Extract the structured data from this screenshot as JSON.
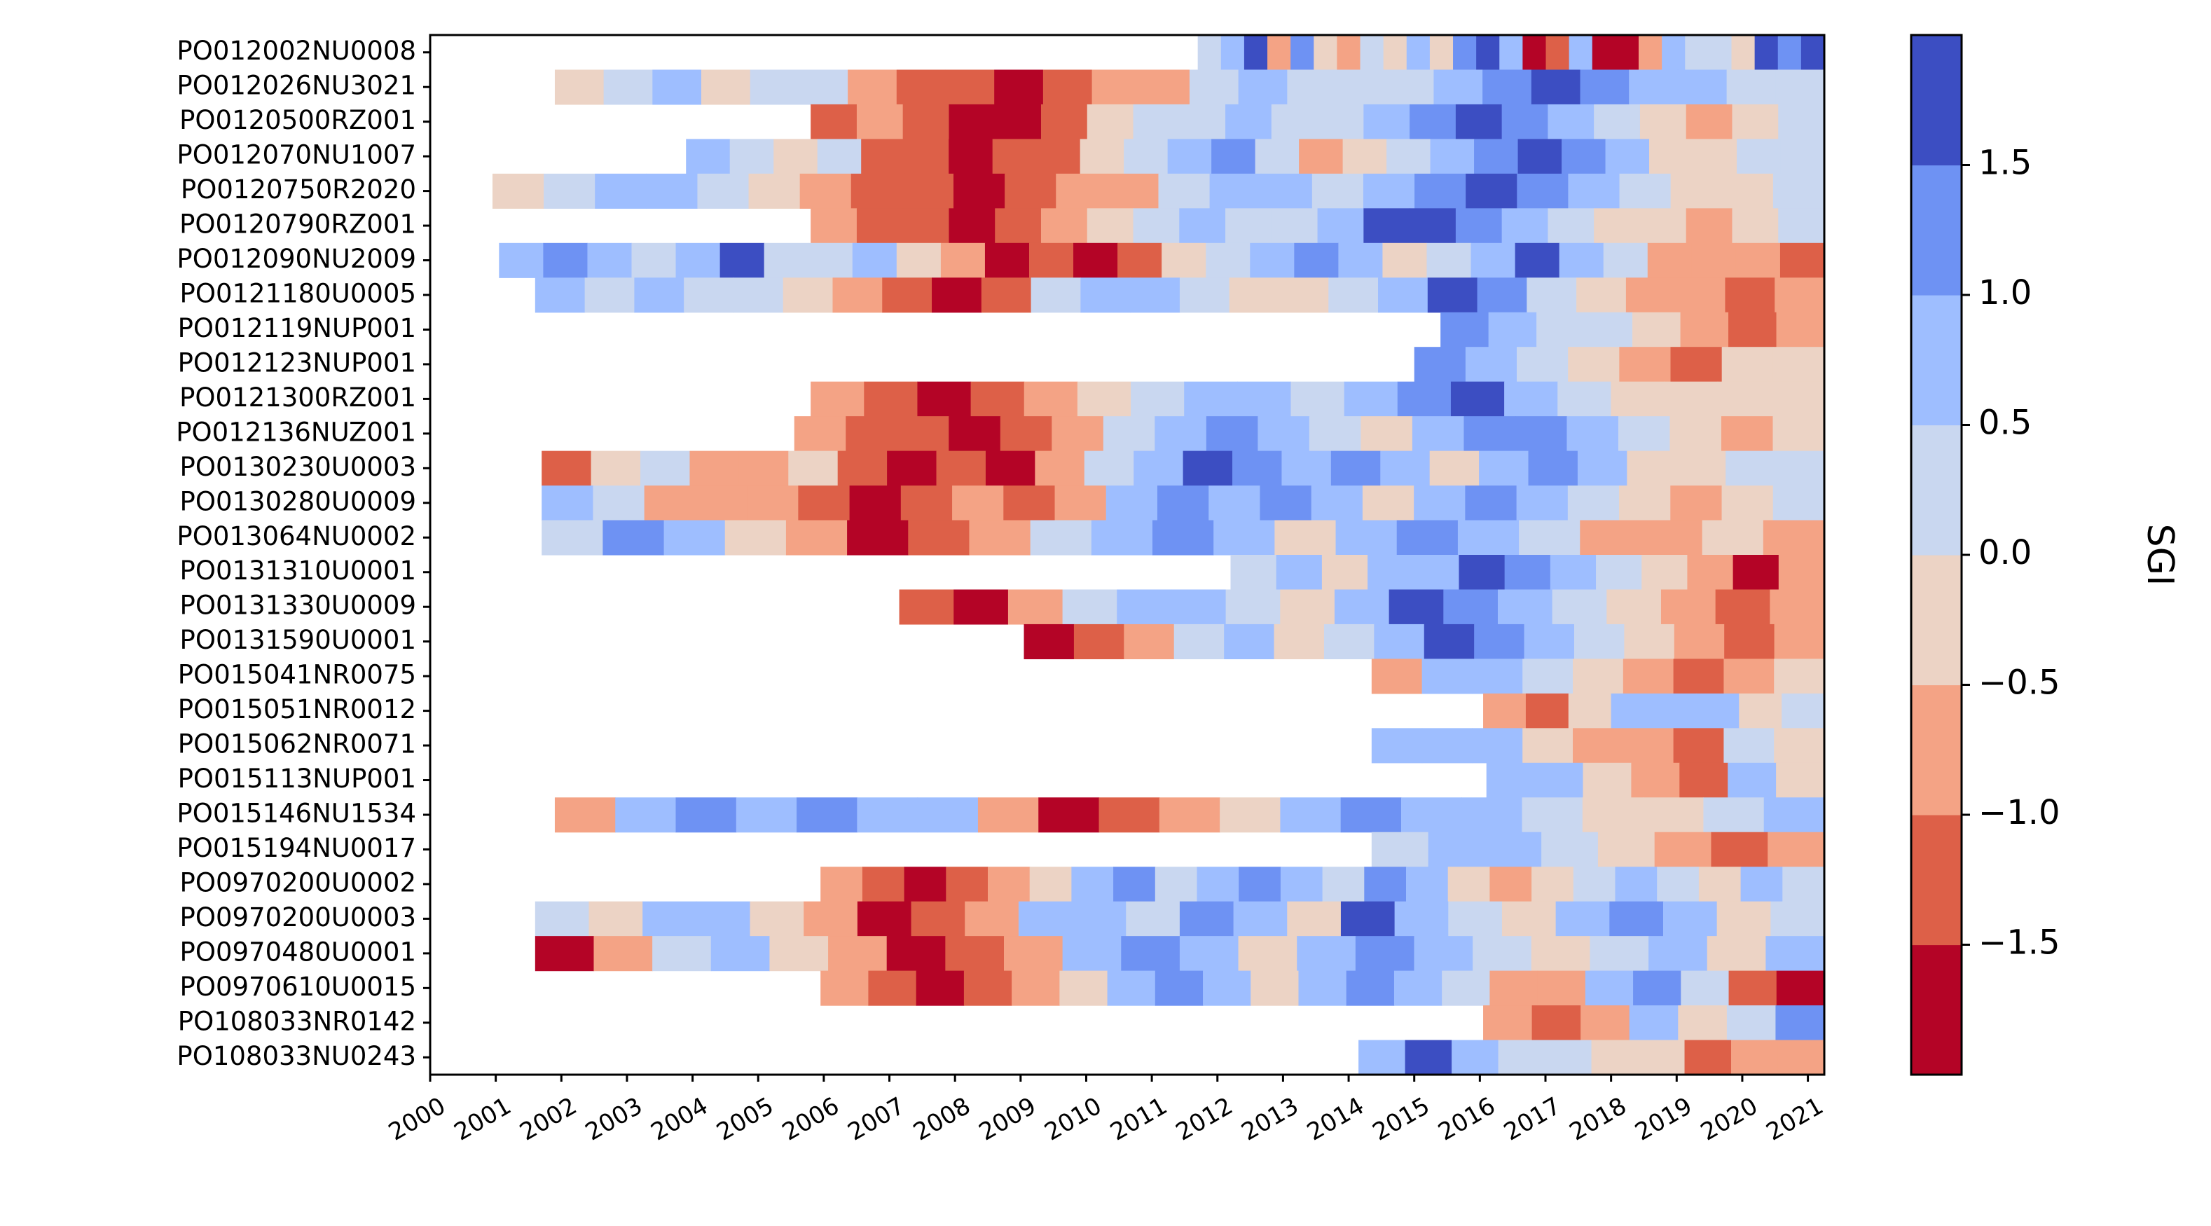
{
  "chart_data": {
    "type": "heatmap",
    "title": "",
    "xlabel": "",
    "ylabel": "",
    "xlim": [
      2000,
      2021.25
    ],
    "x_ticks": [
      "2000",
      "2001",
      "2002",
      "2003",
      "2004",
      "2005",
      "2006",
      "2007",
      "2008",
      "2009",
      "2010",
      "2011",
      "2012",
      "2013",
      "2014",
      "2015",
      "2016",
      "2017",
      "2018",
      "2019",
      "2020",
      "2021"
    ],
    "rows": [
      {
        "id": "PO012002NU0008",
        "start": 2011.7,
        "end": 2021.25,
        "values": [
          0.3,
          0.8,
          1.6,
          -0.6,
          1.0,
          -0.3,
          -0.8,
          0.2,
          -0.4,
          0.6,
          -0.2,
          1.1,
          1.5,
          0.5,
          -1.8,
          -1.2,
          0.8,
          -1.9,
          -1.7,
          -0.6,
          0.9,
          0.4,
          0.3,
          -0.4,
          1.7,
          1.4,
          1.7
        ]
      },
      {
        "id": "PO012026NU3021",
        "start": 2001.9,
        "end": 2021.25,
        "values": [
          -0.4,
          0.2,
          0.6,
          -0.3,
          0.1,
          0.4,
          -0.8,
          -1.2,
          -1.5,
          -1.8,
          -1.3,
          -0.8,
          -0.6,
          0.2,
          0.6,
          0.4,
          0.2,
          0.1,
          0.8,
          1.2,
          1.6,
          1.3,
          0.7,
          0.5,
          0.1,
          0.3
        ]
      },
      {
        "id": "PO0120500RZ001",
        "start": 2005.8,
        "end": 2021.25,
        "values": [
          -1.1,
          -0.7,
          -1.3,
          -1.8,
          -1.6,
          -1.1,
          -0.5,
          0.1,
          0.4,
          0.6,
          0.3,
          0.2,
          0.5,
          1.2,
          1.6,
          1.4,
          0.9,
          0.3,
          -0.3,
          -0.6,
          -0.4,
          0.2
        ]
      },
      {
        "id": "PO012070NU1007",
        "start": 2003.9,
        "end": 2021.25,
        "values": [
          0.6,
          0.2,
          -0.4,
          0.1,
          -1.2,
          -1.4,
          -1.8,
          -1.5,
          -1.1,
          -0.5,
          0.2,
          0.6,
          1.0,
          0.3,
          -0.6,
          -0.4,
          0.2,
          0.5,
          1.3,
          1.6,
          1.2,
          0.5,
          -0.3,
          -0.5,
          0.1,
          0.3
        ]
      },
      {
        "id": "PO0120750R2020",
        "start": 2000.95,
        "end": 2021.25,
        "values": [
          -0.5,
          0.3,
          0.6,
          0.8,
          0.4,
          -0.3,
          -0.6,
          -1.1,
          -1.3,
          -1.7,
          -1.4,
          -0.9,
          -0.6,
          0.2,
          0.6,
          0.8,
          0.3,
          0.6,
          1.4,
          1.6,
          1.2,
          0.7,
          0.2,
          -0.3,
          -0.5,
          0.1
        ]
      },
      {
        "id": "PO0120790RZ001",
        "start": 2005.8,
        "end": 2021.25,
        "values": [
          -0.9,
          -1.1,
          -1.4,
          -1.8,
          -1.5,
          -0.7,
          -0.3,
          0.4,
          0.6,
          0.3,
          0.1,
          0.6,
          1.5,
          1.7,
          1.3,
          0.8,
          0.4,
          -0.2,
          -0.5,
          -0.7,
          -0.3,
          0.2
        ]
      },
      {
        "id": "PO012090NU2009",
        "start": 2001.05,
        "end": 2021.25,
        "values": [
          0.9,
          1.4,
          0.5,
          0.2,
          0.8,
          1.6,
          0.4,
          0.2,
          0.7,
          -0.3,
          -0.8,
          -1.6,
          -1.1,
          -1.8,
          -1.3,
          -0.4,
          0.3,
          0.6,
          1.1,
          0.5,
          -0.2,
          0.4,
          0.9,
          1.6,
          0.7,
          0.2,
          -0.6,
          -1.0,
          -0.7,
          -1.2
        ]
      },
      {
        "id": "PO0121180U0005",
        "start": 2001.6,
        "end": 2021.25,
        "values": [
          0.6,
          0.3,
          0.9,
          0.2,
          0.3,
          -0.2,
          -0.6,
          -1.2,
          -1.7,
          -1.1,
          0.2,
          0.6,
          0.9,
          0.4,
          -0.2,
          -0.4,
          0.3,
          0.9,
          1.5,
          1.0,
          0.4,
          -0.3,
          -0.6,
          -0.9,
          -1.2,
          -0.8
        ]
      },
      {
        "id": "PO012119NUP001",
        "start": 2015.4,
        "end": 2021.25,
        "values": [
          1.0,
          0.7,
          0.4,
          0.1,
          -0.4,
          -0.7,
          -1.1,
          -0.6
        ]
      },
      {
        "id": "PO012123NUP001",
        "start": 2015.0,
        "end": 2021.25,
        "values": [
          1.1,
          0.8,
          0.3,
          -0.2,
          -0.6,
          -1.3,
          -0.5,
          -0.2
        ]
      },
      {
        "id": "PO0121300RZ001",
        "start": 2005.8,
        "end": 2021.25,
        "values": [
          -0.9,
          -1.2,
          -1.7,
          -1.3,
          -0.8,
          -0.5,
          0.3,
          0.6,
          0.8,
          0.3,
          0.6,
          1.3,
          1.6,
          0.9,
          0.4,
          -0.2,
          -0.5,
          -0.4,
          -0.1
        ]
      },
      {
        "id": "PO012136NUZ001",
        "start": 2005.55,
        "end": 2021.25,
        "values": [
          -1.0,
          -1.5,
          -1.2,
          -1.7,
          -1.1,
          -0.6,
          0.3,
          0.7,
          1.2,
          0.6,
          0.4,
          -0.3,
          0.5,
          1.3,
          1.0,
          0.5,
          0.2,
          -0.4,
          -0.6,
          -0.2
        ]
      },
      {
        "id": "PO0130230U0003",
        "start": 2001.7,
        "end": 2021.25,
        "values": [
          -1.2,
          -0.4,
          0.2,
          -0.7,
          -0.9,
          -0.5,
          -1.1,
          -1.6,
          -1.3,
          -1.7,
          -0.9,
          0.4,
          0.9,
          1.5,
          1.1,
          0.6,
          1.3,
          0.5,
          -0.4,
          0.7,
          1.2,
          0.6,
          -0.3,
          -0.5,
          0.3,
          0.2
        ]
      },
      {
        "id": "PO0130280U0009",
        "start": 2001.7,
        "end": 2021.25,
        "values": [
          0.7,
          0.3,
          -0.6,
          -0.9,
          -0.6,
          -1.3,
          -1.7,
          -1.2,
          -0.8,
          -1.5,
          -0.6,
          0.5,
          1.1,
          0.7,
          1.3,
          0.6,
          -0.2,
          0.8,
          1.4,
          0.9,
          0.4,
          -0.3,
          -0.6,
          -0.4,
          0.1
        ]
      },
      {
        "id": "PO013064NU0002",
        "start": 2001.7,
        "end": 2021.25,
        "values": [
          0.2,
          1.1,
          0.6,
          -0.3,
          -0.6,
          -1.7,
          -1.3,
          -0.8,
          0.4,
          0.9,
          1.2,
          0.6,
          -0.2,
          0.8,
          1.4,
          0.7,
          0.2,
          -0.6,
          -0.9,
          -0.5,
          -0.8
        ]
      },
      {
        "id": "PO0131310U0001",
        "start": 2012.2,
        "end": 2021.25,
        "values": [
          0.3,
          0.6,
          -0.3,
          0.5,
          0.9,
          1.6,
          1.2,
          0.7,
          0.4,
          -0.4,
          -0.7,
          -1.8,
          -0.9
        ]
      },
      {
        "id": "PO0131330U0009",
        "start": 2007.15,
        "end": 2021.25,
        "values": [
          -1.2,
          -1.7,
          -0.9,
          0.2,
          0.5,
          0.9,
          0.4,
          -0.3,
          0.6,
          1.5,
          1.1,
          0.7,
          0.3,
          -0.5,
          -0.8,
          -1.1,
          -0.6
        ]
      },
      {
        "id": "PO0131590U0001",
        "start": 2009.05,
        "end": 2021.25,
        "values": [
          -1.8,
          -1.2,
          -0.8,
          0.3,
          0.7,
          -0.2,
          0.4,
          0.9,
          1.6,
          1.1,
          0.6,
          0.2,
          -0.5,
          -0.9,
          -1.4,
          -0.8
        ]
      },
      {
        "id": "PO015041NR0075",
        "start": 2014.35,
        "end": 2021.25,
        "values": [
          -1.0,
          0.9,
          0.6,
          0.3,
          -0.4,
          -0.7,
          -1.1,
          -0.6,
          -0.3
        ]
      },
      {
        "id": "PO015051NR0012",
        "start": 2016.05,
        "end": 2021.25,
        "values": [
          -0.6,
          -1.2,
          -0.4,
          0.5,
          0.9,
          0.6,
          -0.5,
          0.3
        ]
      },
      {
        "id": "PO015062NR0071",
        "start": 2014.35,
        "end": 2021.25,
        "values": [
          0.6,
          0.9,
          0.5,
          -0.2,
          -0.6,
          -0.9,
          -1.2,
          0.3,
          -0.4
        ]
      },
      {
        "id": "PO015113NUP001",
        "start": 2016.1,
        "end": 2021.25,
        "values": [
          0.8,
          0.5,
          -0.3,
          -0.8,
          -1.2,
          0.9,
          -0.5
        ]
      },
      {
        "id": "PO015146NU1534",
        "start": 2001.9,
        "end": 2021.25,
        "values": [
          -0.7,
          0.9,
          1.4,
          0.8,
          1.2,
          0.6,
          0.9,
          -0.6,
          -1.7,
          -1.1,
          -0.6,
          -0.3,
          0.6,
          1.2,
          0.9,
          0.5,
          0.2,
          -0.2,
          -0.5,
          0.2,
          0.5
        ]
      },
      {
        "id": "PO015194NU0017",
        "start": 2014.35,
        "end": 2021.25,
        "values": [
          0.3,
          0.8,
          0.5,
          0.2,
          -0.3,
          -0.6,
          -1.1,
          -0.6
        ]
      },
      {
        "id": "PO0970200U0002",
        "start": 2005.95,
        "end": 2021.25,
        "values": [
          -0.6,
          -1.5,
          -1.8,
          -1.3,
          -0.8,
          -0.4,
          0.6,
          1.1,
          0.4,
          0.8,
          1.4,
          0.6,
          0.2,
          1.3,
          0.9,
          -0.3,
          -0.8,
          -0.5,
          0.3,
          0.8,
          0.4,
          -0.3,
          0.6,
          0.2
        ]
      },
      {
        "id": "PO0970200U0003",
        "start": 2001.6,
        "end": 2021.25,
        "values": [
          0.2,
          -0.5,
          0.6,
          0.9,
          -0.4,
          -0.9,
          -1.6,
          -1.2,
          -0.6,
          0.5,
          0.9,
          0.3,
          1.1,
          0.6,
          -0.2,
          1.5,
          0.9,
          0.4,
          -0.4,
          0.6,
          1.0,
          0.5,
          -0.3,
          0.4
        ]
      },
      {
        "id": "PO0970480U0001",
        "start": 2001.6,
        "end": 2021.25,
        "values": [
          -1.7,
          -0.6,
          0.4,
          0.8,
          -0.4,
          -0.8,
          -1.7,
          -1.1,
          -0.6,
          0.6,
          1.2,
          0.5,
          -0.3,
          0.7,
          1.3,
          0.8,
          0.3,
          -0.5,
          0.4,
          0.8,
          -0.3,
          0.5
        ]
      },
      {
        "id": "PO0970610U0015",
        "start": 2005.95,
        "end": 2021.25,
        "values": [
          -0.8,
          -1.3,
          -1.8,
          -1.2,
          -0.7,
          -0.3,
          0.6,
          1.4,
          0.8,
          -0.2,
          0.5,
          1.1,
          0.9,
          0.4,
          -0.6,
          -0.9,
          0.6,
          1.0,
          0.4,
          -1.2,
          -1.6
        ]
      },
      {
        "id": "PO108033NR0142",
        "start": 2016.05,
        "end": 2021.25,
        "values": [
          -0.6,
          -1.1,
          -0.8,
          0.5,
          -0.4,
          0.3,
          1.3
        ]
      },
      {
        "id": "PO108033NU0243",
        "start": 2014.15,
        "end": 2021.25,
        "values": [
          0.7,
          1.5,
          0.9,
          0.3,
          0.2,
          -0.5,
          -0.3,
          -1.1,
          -0.6,
          -0.9
        ]
      }
    ],
    "colorbar": {
      "label": "SGI",
      "range": [
        -2,
        2
      ],
      "ticks": [
        "1.5",
        "1.0",
        "0.5",
        "0.0",
        "−0.5",
        "−1.0",
        "−1.5"
      ],
      "tick_values": [
        1.5,
        1.0,
        0.5,
        0.0,
        -0.5,
        -1.0,
        -1.5
      ],
      "bins": [
        {
          "from": -2.0,
          "to": -1.5,
          "color": "#b40426"
        },
        {
          "from": -1.5,
          "to": -1.0,
          "color": "#dd6048"
        },
        {
          "from": -1.0,
          "to": -0.5,
          "color": "#f4a385"
        },
        {
          "from": -0.5,
          "to": 0.0,
          "color": "#ecd3c5"
        },
        {
          "from": 0.0,
          "to": 0.5,
          "color": "#c9d7f0"
        },
        {
          "from": 0.5,
          "to": 1.0,
          "color": "#9ebeff"
        },
        {
          "from": 1.0,
          "to": 1.5,
          "color": "#6e92f3"
        },
        {
          "from": 1.5,
          "to": 2.0,
          "color": "#3c4ec2"
        }
      ]
    }
  }
}
